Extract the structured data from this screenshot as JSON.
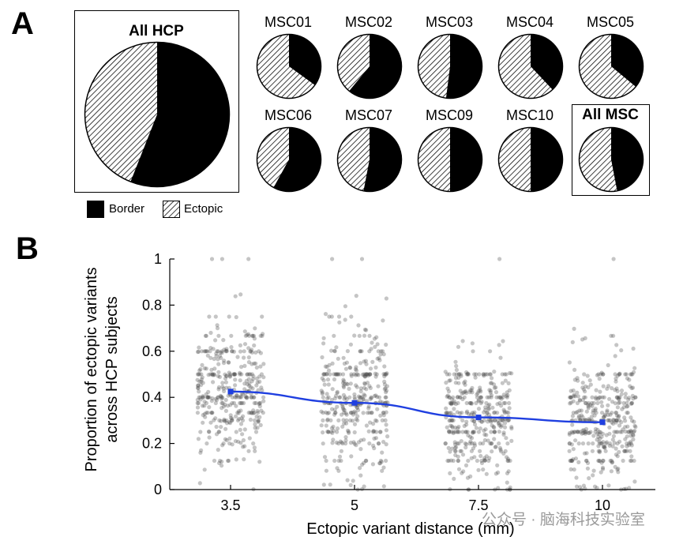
{
  "panel_a_label": "A",
  "panel_b_label": "B",
  "colors": {
    "border": "#000000",
    "ectopic_hatch": "#000000",
    "mean_line": "#1f3fe0",
    "dots": "#4a4a4a"
  },
  "chart_data": [
    {
      "type": "pie",
      "panel": "A",
      "title": "All HCP",
      "slices": [
        {
          "label": "Border",
          "value": 0.56
        },
        {
          "label": "Ectopic",
          "value": 0.44
        }
      ]
    },
    {
      "type": "pie",
      "panel": "A",
      "subjects": [
        {
          "title": "MSC01",
          "border": 0.35,
          "bold": false
        },
        {
          "title": "MSC02",
          "border": 0.61,
          "bold": false
        },
        {
          "title": "MSC03",
          "border": 0.52,
          "bold": false
        },
        {
          "title": "MSC04",
          "border": 0.38,
          "bold": false
        },
        {
          "title": "MSC05",
          "border": 0.36,
          "bold": false
        },
        {
          "title": "MSC06",
          "border": 0.58,
          "bold": false
        },
        {
          "title": "MSC07",
          "border": 0.53,
          "bold": false
        },
        {
          "title": "MSC09",
          "border": 0.5,
          "bold": false
        },
        {
          "title": "MSC10",
          "border": 0.5,
          "bold": false
        },
        {
          "title": "All MSC",
          "border": 0.47,
          "bold": true
        }
      ],
      "legend": [
        {
          "label": "Border",
          "style": "solid"
        },
        {
          "label": "Ectopic",
          "style": "hatched"
        }
      ]
    },
    {
      "type": "scatter",
      "panel": "B",
      "xlabel": "Ectopic variant distance (mm)",
      "ylabel_line1": "Proportion of ectopic variants",
      "ylabel_line2": "across HCP subjects",
      "categories": [
        "3.5",
        "5",
        "7.5",
        "10"
      ],
      "yticks": [
        "0",
        "0.2",
        "0.4",
        "0.6",
        "0.8",
        "1"
      ],
      "ylim": [
        0,
        1
      ],
      "mean_series": {
        "name": "Mean",
        "values": [
          0.425,
          0.376,
          0.313,
          0.292
        ],
        "sem": [
          0.008,
          0.008,
          0.008,
          0.007
        ]
      },
      "point_cloud": {
        "n_per_group": 380,
        "group_center": [
          0.43,
          0.38,
          0.31,
          0.29
        ],
        "group_spread": [
          0.15,
          0.15,
          0.14,
          0.14
        ],
        "outliers_at_one": [
          3,
          2,
          1,
          1
        ]
      }
    }
  ],
  "watermark": "公众号 · 脑海科技实验室"
}
